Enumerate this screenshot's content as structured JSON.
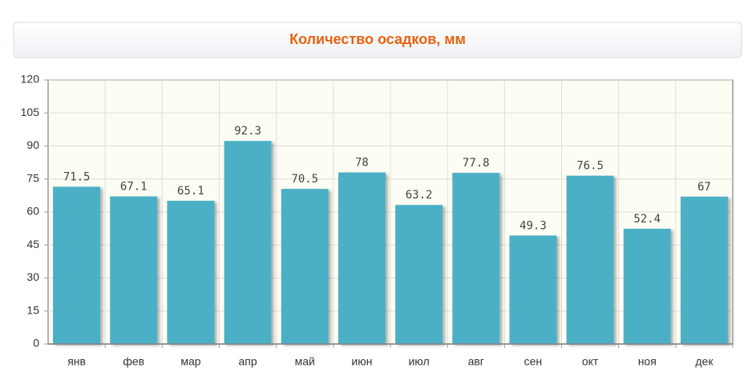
{
  "chart_data": {
    "type": "bar",
    "title": "Количество осадков, мм",
    "categories": [
      "янв",
      "фев",
      "мар",
      "апр",
      "май",
      "июн",
      "июл",
      "авг",
      "сен",
      "окт",
      "ноя",
      "дек"
    ],
    "values": [
      71.5,
      67.1,
      65.1,
      92.3,
      70.5,
      78,
      63.2,
      77.8,
      49.3,
      76.5,
      52.4,
      67
    ],
    "color": "#4bb0c6",
    "ylim": [
      0,
      120
    ],
    "yticks": [
      0,
      15,
      30,
      45,
      60,
      75,
      90,
      105,
      120
    ],
    "grid": true
  }
}
